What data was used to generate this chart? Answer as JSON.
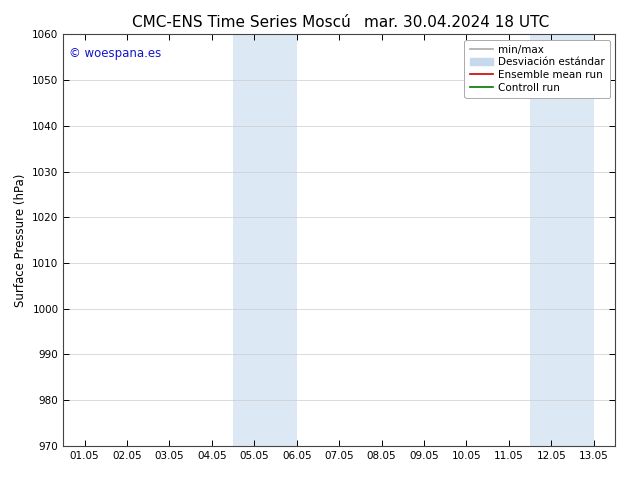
{
  "title_left": "CMC-ENS Time Series Moscú",
  "title_right": "mar. 30.04.2024 18 UTC",
  "ylabel": "Surface Pressure (hPa)",
  "xlabel": "",
  "ylim": [
    970,
    1060
  ],
  "yticks": [
    970,
    980,
    990,
    1000,
    1010,
    1020,
    1030,
    1040,
    1050,
    1060
  ],
  "xtick_labels": [
    "01.05",
    "02.05",
    "03.05",
    "04.05",
    "05.05",
    "06.05",
    "07.05",
    "08.05",
    "09.05",
    "10.05",
    "11.05",
    "12.05",
    "13.05"
  ],
  "xtick_positions": [
    0,
    1,
    2,
    3,
    4,
    5,
    6,
    7,
    8,
    9,
    10,
    11,
    12
  ],
  "xlim": [
    -0.5,
    12.5
  ],
  "shaded_bands": [
    {
      "x_start": 3.5,
      "x_end": 5.0,
      "color": "#dce9f5"
    },
    {
      "x_start": 10.5,
      "x_end": 12.0,
      "color": "#dce9f5"
    }
  ],
  "watermark_text": "© woespana.es",
  "watermark_color": "#1515cc",
  "bg_color": "#ffffff",
  "grid_color": "#cccccc",
  "spine_color": "#444444",
  "legend_line1_label": "min/max",
  "legend_line1_color": "#aaaaaa",
  "legend_line2_label": "Desviación estándar",
  "legend_line2_color": "#c5d8ec",
  "legend_line3_label": "Ensemble mean run",
  "legend_line3_color": "#cc0000",
  "legend_line4_label": "Controll run",
  "legend_line4_color": "#007700",
  "title_fontsize": 11,
  "tick_fontsize": 7.5,
  "ylabel_fontsize": 8.5,
  "legend_fontsize": 7.5
}
